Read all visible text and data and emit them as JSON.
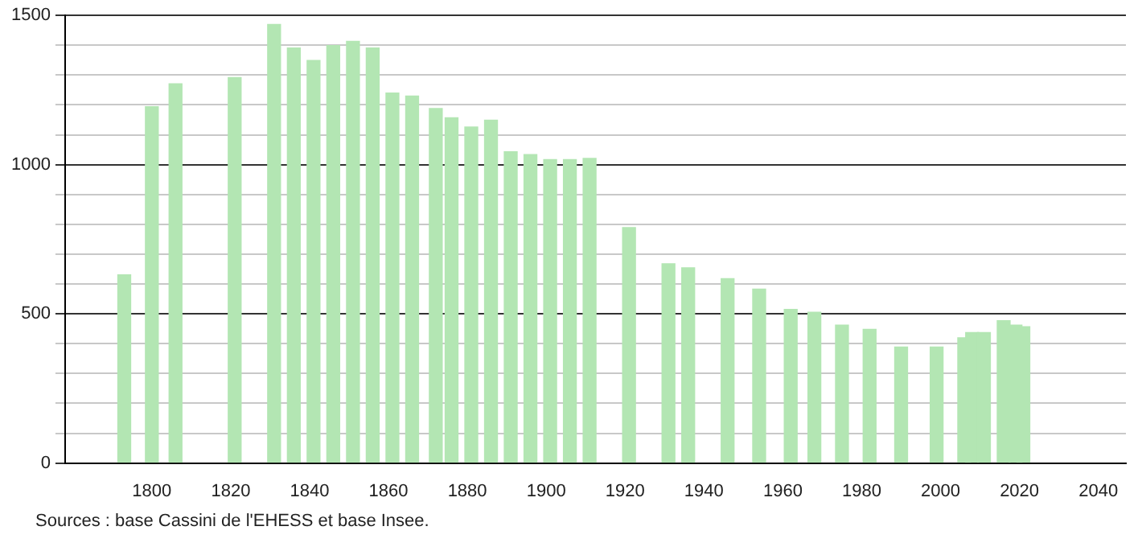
{
  "chart_data": {
    "type": "bar",
    "x": [
      1793,
      1800,
      1806,
      1821,
      1831,
      1836,
      1841,
      1846,
      1851,
      1856,
      1861,
      1866,
      1872,
      1876,
      1881,
      1886,
      1891,
      1896,
      1901,
      1906,
      1911,
      1921,
      1931,
      1936,
      1946,
      1954,
      1962,
      1968,
      1975,
      1982,
      1990,
      1999,
      2006,
      2008,
      2011,
      2016,
      2019,
      2021
    ],
    "values": [
      631,
      1194,
      1271,
      1292,
      1470,
      1391,
      1349,
      1399,
      1413,
      1391,
      1240,
      1230,
      1188,
      1157,
      1126,
      1149,
      1043,
      1034,
      1017,
      1017,
      1021,
      789,
      668,
      654,
      618,
      583,
      515,
      505,
      462,
      448,
      389,
      389,
      420,
      437,
      437,
      477,
      462,
      457
    ],
    "color": "#b3e6b3",
    "xlim": [
      1778,
      2047
    ],
    "xticks": [
      1800,
      1820,
      1840,
      1860,
      1880,
      1900,
      1920,
      1940,
      1960,
      1980,
      2000,
      2020,
      2040
    ],
    "ylim": [
      0,
      1500
    ],
    "yticks": [
      0,
      {
        "value": 100,
        "label": null
      },
      {
        "value": 200,
        "label": null
      },
      {
        "value": 300,
        "label": null
      },
      {
        "value": 400,
        "label": null
      },
      500,
      {
        "value": 600,
        "label": null
      },
      {
        "value": 700,
        "label": null
      },
      {
        "value": 800,
        "label": null
      },
      {
        "value": 900,
        "label": null
      },
      1000,
      {
        "value": 1100,
        "label": null
      },
      {
        "value": 1200,
        "label": null
      },
      {
        "value": 1300,
        "label": null
      },
      {
        "value": 1400,
        "label": null
      },
      1500
    ],
    "grid": "y",
    "legend": false,
    "annotations": [
      "Sources : base Cassini de l'EHESS et base Insee."
    ]
  }
}
